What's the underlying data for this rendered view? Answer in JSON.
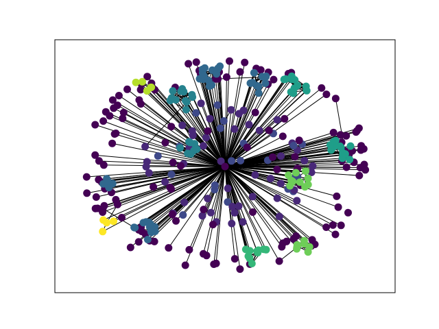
{
  "chart_data": {
    "type": "network",
    "node_colors": [
      "#440154",
      "#482878",
      "#3e4989",
      "#31688e",
      "#26828e",
      "#1f9e89",
      "#35b779",
      "#6ece58",
      "#b5de2b",
      "#fde725"
    ],
    "edge_color": "#000000"
  }
}
